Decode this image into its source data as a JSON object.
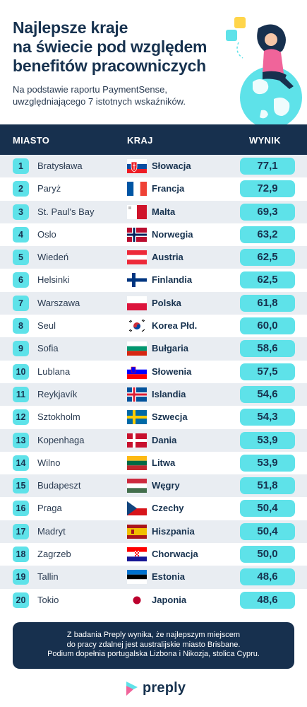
{
  "title_lines": [
    "Najlepsze kraje",
    "na świecie pod względem",
    "benefitów pracowniczych"
  ],
  "subtitle_lines": [
    "Na podstawie raportu PaymentSense,",
    "uwzględniającego 7 istotnych wskaźników."
  ],
  "columns": {
    "city": "MIASTO",
    "country": "KRAJ",
    "score": "WYNIK"
  },
  "rows": [
    {
      "rank": "1",
      "city": "Bratysława",
      "country": "Słowacja",
      "score": "77,1",
      "flag": "slovakia"
    },
    {
      "rank": "2",
      "city": "Paryż",
      "country": "Francja",
      "score": "72,9",
      "flag": "france"
    },
    {
      "rank": "3",
      "city": "St. Paul's Bay",
      "country": "Malta",
      "score": "69,3",
      "flag": "malta"
    },
    {
      "rank": "4",
      "city": "Oslo",
      "country": "Norwegia",
      "score": "63,2",
      "flag": "norway"
    },
    {
      "rank": "5",
      "city": "Wiedeń",
      "country": "Austria",
      "score": "62,5",
      "flag": "austria"
    },
    {
      "rank": "6",
      "city": "Helsinki",
      "country": "Finlandia",
      "score": "62,5",
      "flag": "finland"
    },
    {
      "rank": "7",
      "city": "Warszawa",
      "country": "Polska",
      "score": "61,8",
      "flag": "poland"
    },
    {
      "rank": "8",
      "city": "Seul",
      "country": "Korea Płd.",
      "score": "60,0",
      "flag": "south-korea"
    },
    {
      "rank": "9",
      "city": "Sofia",
      "country": "Bułgaria",
      "score": "58,6",
      "flag": "bulgaria"
    },
    {
      "rank": "10",
      "city": "Lublana",
      "country": "Słowenia",
      "score": "57,5",
      "flag": "slovenia"
    },
    {
      "rank": "11",
      "city": "Reykjavík",
      "country": "Islandia",
      "score": "54,6",
      "flag": "iceland"
    },
    {
      "rank": "12",
      "city": "Sztokholm",
      "country": "Szwecja",
      "score": "54,3",
      "flag": "sweden"
    },
    {
      "rank": "13",
      "city": "Kopenhaga",
      "country": "Dania",
      "score": "53,9",
      "flag": "denmark"
    },
    {
      "rank": "14",
      "city": "Wilno",
      "country": "Litwa",
      "score": "53,9",
      "flag": "lithuania"
    },
    {
      "rank": "15",
      "city": "Budapeszt",
      "country": "Węgry",
      "score": "51,8",
      "flag": "hungary"
    },
    {
      "rank": "16",
      "city": "Praga",
      "country": "Czechy",
      "score": "50,4",
      "flag": "czechia"
    },
    {
      "rank": "17",
      "city": "Madryt",
      "country": "Hiszpania",
      "score": "50,4",
      "flag": "spain"
    },
    {
      "rank": "18",
      "city": "Zagrzeb",
      "country": "Chorwacja",
      "score": "50,0",
      "flag": "croatia"
    },
    {
      "rank": "19",
      "city": "Tallin",
      "country": "Estonia",
      "score": "48,6",
      "flag": "estonia"
    },
    {
      "rank": "20",
      "city": "Tokio",
      "country": "Japonia",
      "score": "48,6",
      "flag": "japan"
    }
  ],
  "note_lines": [
    "Z badania Preply wynika, że najlepszym miejscem",
    "do pracy zdalnej jest australijskie miasto Brisbane.",
    "Podium dopełnia portugalska Lizbona i Nikozja, stolica Cypru."
  ],
  "logo": {
    "text": "preply",
    "icon": "preply-logo-icon"
  },
  "colors": {
    "navy": "#17304e",
    "accent": "#5ee2e9",
    "row_alt": "#e9edf2"
  }
}
